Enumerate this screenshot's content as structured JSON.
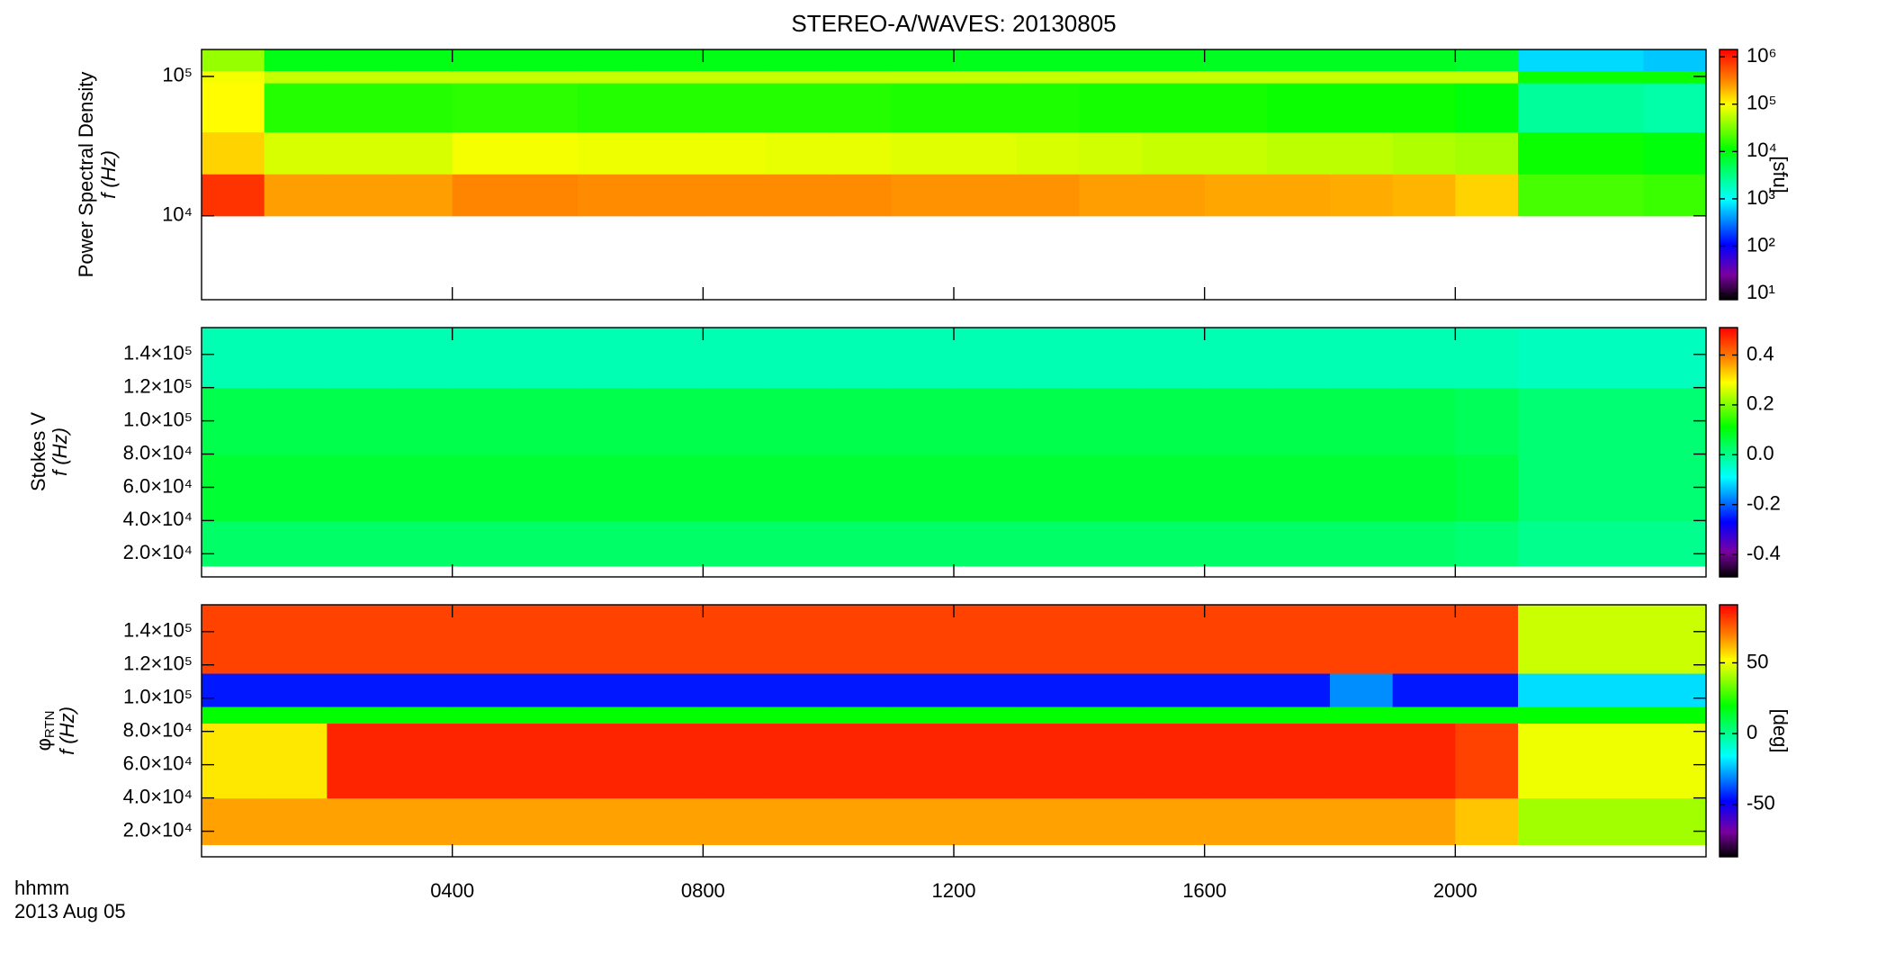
{
  "colormap": [
    {
      "pos": 0,
      "color": "#000000"
    },
    {
      "pos": 0.1,
      "color": "#7a00a0"
    },
    {
      "pos": 0.22,
      "color": "#0000ff"
    },
    {
      "pos": 0.4,
      "color": "#00ffff"
    },
    {
      "pos": 0.6,
      "color": "#00ff00"
    },
    {
      "pos": 0.78,
      "color": "#ffff00"
    },
    {
      "pos": 0.88,
      "color": "#ff8000"
    },
    {
      "pos": 1,
      "color": "#ff0000"
    }
  ],
  "chart_data": [
    {
      "type": "heatmap",
      "title": "STEREO-A/WAVES: 20130805",
      "ylabel": "Power Spectral Density",
      "f_label": "f (Hz)",
      "zlabel": "[sfu]",
      "ylog": true,
      "zlog": true,
      "xlim": [
        0,
        24
      ],
      "ylim": [
        2500,
        156000
      ],
      "zlim": [
        7.4,
        1430000
      ],
      "yticks": [
        {
          "value": 10000,
          "label": "10⁴"
        },
        {
          "value": 100000,
          "label": "10⁵"
        }
      ],
      "zticks": [
        {
          "value": 10,
          "label": "10¹"
        },
        {
          "value": 100,
          "label": "10²"
        },
        {
          "value": 1000,
          "label": "10³"
        },
        {
          "value": 10000,
          "label": "10⁴"
        },
        {
          "value": 100000,
          "label": "10⁵"
        },
        {
          "value": 1000000,
          "label": "10⁶"
        }
      ],
      "x_edges": [
        0,
        1,
        2,
        3,
        4,
        5,
        6,
        7,
        8,
        9,
        10,
        11,
        12,
        13,
        14,
        15,
        16,
        17,
        18,
        19,
        20,
        21,
        22,
        23,
        24
      ],
      "y_edges": [
        10000,
        20000,
        40000,
        90000,
        110000,
        156000
      ],
      "z": [
        [
          800000,
          250000,
          250000,
          250000,
          320000,
          320000,
          300000,
          300000,
          300000,
          300000,
          300000,
          280000,
          280000,
          280000,
          250000,
          250000,
          230000,
          230000,
          220000,
          200000,
          150000,
          20000,
          20000,
          18000
        ],
        [
          150000,
          70000,
          70000,
          70000,
          90000,
          90000,
          85000,
          85000,
          85000,
          80000,
          80000,
          75000,
          75000,
          70000,
          65000,
          60000,
          60000,
          55000,
          55000,
          50000,
          45000,
          12000,
          12000,
          10000
        ],
        [
          100000,
          15000,
          15000,
          15000,
          16000,
          16000,
          15000,
          15000,
          15000,
          15000,
          15000,
          14000,
          14000,
          14000,
          13000,
          13000,
          13000,
          12000,
          12000,
          12000,
          10000,
          2500,
          2500,
          2200
        ],
        [
          90000,
          60000,
          60000,
          60000,
          60000,
          60000,
          60000,
          60000,
          60000,
          60000,
          60000,
          60000,
          60000,
          60000,
          60000,
          60000,
          60000,
          60000,
          60000,
          60000,
          60000,
          12000,
          12000,
          12000
        ],
        [
          40000,
          9000,
          9000,
          9000,
          9000,
          9000,
          9000,
          9000,
          9000,
          9000,
          9000,
          9000,
          8500,
          8500,
          8500,
          8500,
          8000,
          8000,
          8000,
          8000,
          7000,
          700,
          700,
          600
        ]
      ]
    },
    {
      "type": "heatmap",
      "ylabel": "Stokes V",
      "f_label": "f (Hz)",
      "ylog": false,
      "zlog": false,
      "xlim": [
        0,
        24
      ],
      "ylim": [
        6100,
        156100
      ],
      "zlim": [
        -0.49,
        0.51
      ],
      "yticks": [
        {
          "value": 20000,
          "label": "2.0×10⁴"
        },
        {
          "value": 40000,
          "label": "4.0×10⁴"
        },
        {
          "value": 60000,
          "label": "6.0×10⁴"
        },
        {
          "value": 80000,
          "label": "8.0×10⁴"
        },
        {
          "value": 100000,
          "label": "1.0×10⁵"
        },
        {
          "value": 120000,
          "label": "1.2×10⁵"
        },
        {
          "value": 140000,
          "label": "1.4×10⁵"
        }
      ],
      "zticks": [
        -0.4,
        -0.2,
        {
          "value": 0,
          "label": "0.0"
        },
        0.2,
        0.4
      ],
      "x_edges": [
        0,
        1,
        2,
        3,
        4,
        5,
        6,
        7,
        8,
        9,
        10,
        11,
        12,
        13,
        14,
        15,
        16,
        17,
        18,
        19,
        20,
        21,
        22,
        23,
        24
      ],
      "y_edges": [
        12700,
        40000,
        80000,
        120000,
        156100
      ],
      "z": [
        [
          0.03,
          0.03,
          0.03,
          0.03,
          0.03,
          0.03,
          0.03,
          0.03,
          0.03,
          0.03,
          0.03,
          0.03,
          0.03,
          0.03,
          0.03,
          0.03,
          0.03,
          0.03,
          0.03,
          0.03,
          0.02,
          0.0,
          0.0,
          0.0
        ],
        [
          0.07,
          0.07,
          0.07,
          0.07,
          0.07,
          0.07,
          0.07,
          0.07,
          0.07,
          0.07,
          0.07,
          0.07,
          0.07,
          0.07,
          0.07,
          0.07,
          0.07,
          0.07,
          0.07,
          0.07,
          0.06,
          0.02,
          0.02,
          0.02
        ],
        [
          0.05,
          0.05,
          0.05,
          0.05,
          0.05,
          0.05,
          0.05,
          0.05,
          0.05,
          0.05,
          0.05,
          0.05,
          0.05,
          0.05,
          0.05,
          0.05,
          0.05,
          0.05,
          0.05,
          0.05,
          0.04,
          0.02,
          0.02,
          0.02
        ],
        [
          -0.03,
          -0.03,
          -0.03,
          -0.03,
          -0.03,
          -0.03,
          -0.03,
          -0.03,
          -0.03,
          -0.03,
          -0.03,
          -0.03,
          -0.03,
          -0.03,
          -0.03,
          -0.03,
          -0.03,
          -0.03,
          -0.03,
          -0.03,
          -0.03,
          -0.04,
          -0.04,
          -0.04
        ]
      ]
    },
    {
      "type": "heatmap",
      "phi": "φ",
      "phi_sub": "RTN",
      "f_label": "f (Hz)",
      "zlabel": "[deg]",
      "x_label": "hhmm",
      "date_label": "2013 Aug 05",
      "ylog": false,
      "zlog": false,
      "xlim": [
        0,
        24
      ],
      "ylim": [
        4630,
        156100
      ],
      "zlim": [
        -87,
        91
      ],
      "yticks": [
        {
          "value": 20000,
          "label": "2.0×10⁴"
        },
        {
          "value": 40000,
          "label": "4.0×10⁴"
        },
        {
          "value": 60000,
          "label": "6.0×10⁴"
        },
        {
          "value": 80000,
          "label": "8.0×10⁴"
        },
        {
          "value": 100000,
          "label": "1.0×10⁵"
        },
        {
          "value": 120000,
          "label": "1.2×10⁵"
        },
        {
          "value": 140000,
          "label": "1.4×10⁵"
        }
      ],
      "zticks": [
        -50,
        0,
        50
      ],
      "xticks": [
        {
          "value": 4,
          "label": "0400"
        },
        {
          "value": 8,
          "label": "0800"
        },
        {
          "value": 12,
          "label": "1200"
        },
        {
          "value": 16,
          "label": "1600"
        },
        {
          "value": 20,
          "label": "2000"
        }
      ],
      "x_edges": [
        0,
        1,
        2,
        3,
        4,
        5,
        6,
        7,
        8,
        9,
        10,
        11,
        12,
        13,
        14,
        15,
        16,
        17,
        18,
        19,
        20,
        21,
        22,
        23,
        24
      ],
      "y_edges": [
        12000,
        40000,
        85000,
        95000,
        115000,
        156100
      ],
      "z": [
        [
          65,
          65,
          65,
          65,
          65,
          65,
          65,
          65,
          65,
          65,
          65,
          65,
          65,
          65,
          65,
          65,
          65,
          65,
          65,
          65,
          60,
          40,
          40,
          40
        ],
        [
          55,
          55,
          85,
          85,
          85,
          85,
          85,
          85,
          85,
          85,
          85,
          85,
          85,
          85,
          85,
          85,
          85,
          85,
          85,
          85,
          80,
          50,
          50,
          50
        ],
        [
          20,
          20,
          20,
          20,
          20,
          20,
          20,
          20,
          20,
          20,
          20,
          20,
          20,
          20,
          20,
          20,
          20,
          20,
          20,
          20,
          20,
          20,
          20,
          20
        ],
        [
          -45,
          -45,
          -45,
          -45,
          -45,
          -45,
          -45,
          -45,
          -45,
          -45,
          -45,
          -45,
          -45,
          -45,
          -45,
          -45,
          -45,
          -45,
          -30,
          -45,
          -45,
          -20,
          -20,
          -20
        ],
        [
          80,
          80,
          80,
          80,
          80,
          80,
          80,
          80,
          80,
          80,
          80,
          80,
          80,
          80,
          80,
          80,
          80,
          80,
          80,
          80,
          80,
          45,
          45,
          45
        ]
      ]
    }
  ]
}
